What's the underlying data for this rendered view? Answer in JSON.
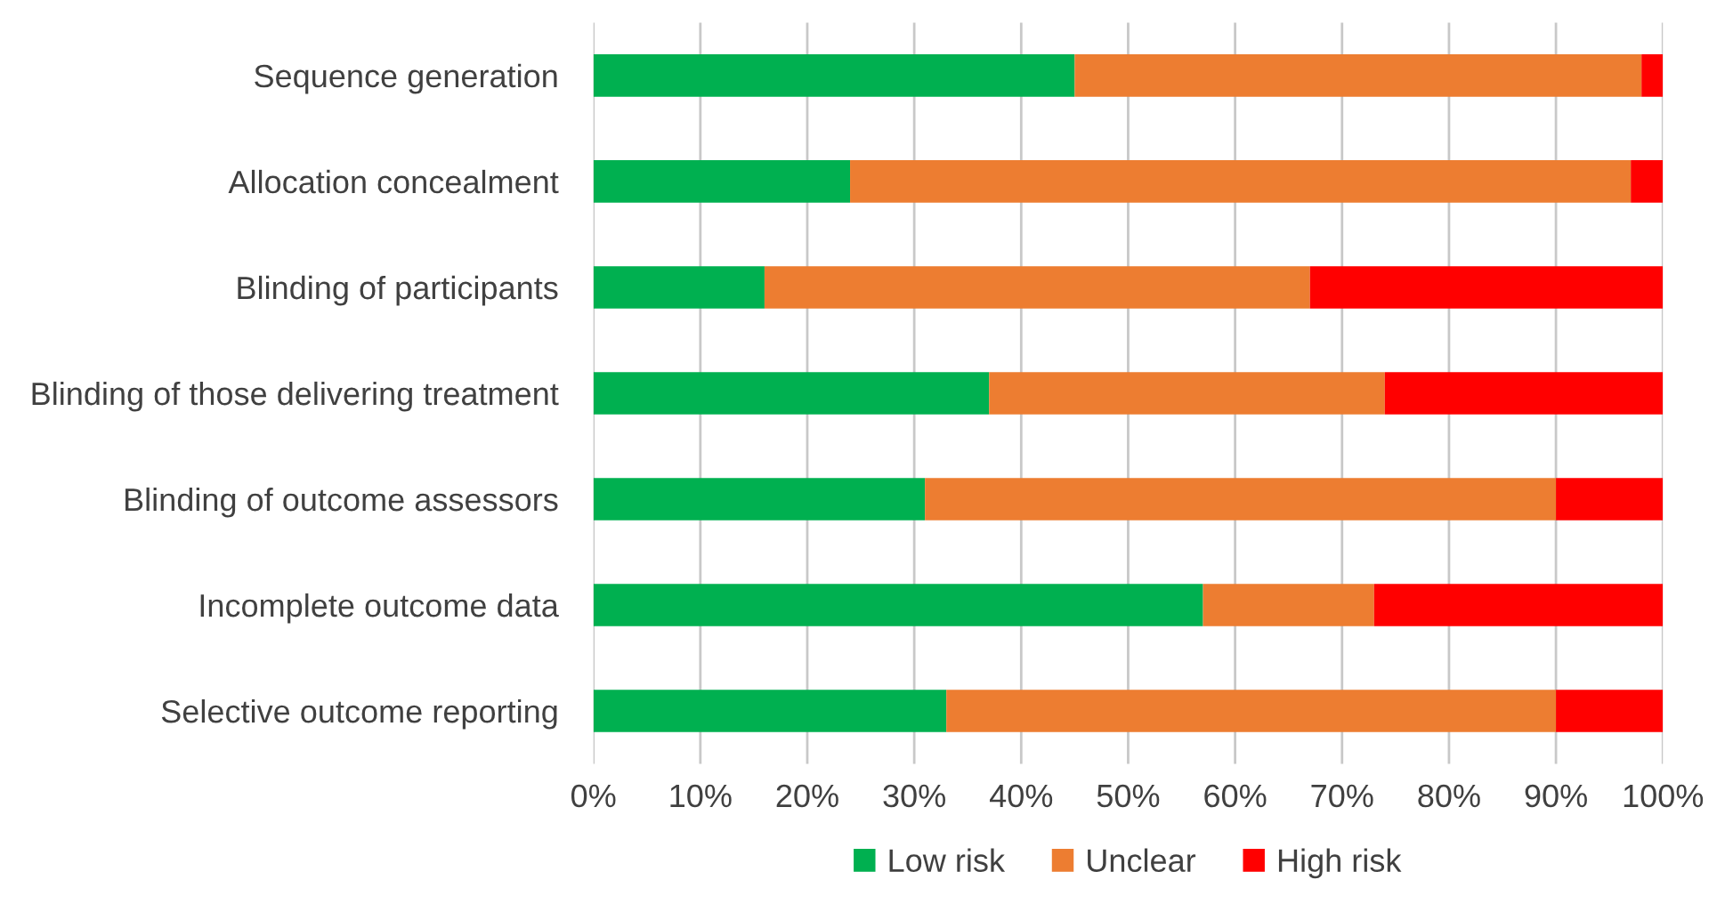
{
  "chart_data": {
    "type": "bar",
    "orientation": "horizontal",
    "stacked": true,
    "categories": [
      "Sequence generation",
      "Allocation concealment",
      "Blinding of participants",
      "Blinding of those delivering treatment",
      "Blinding of outcome assessors",
      "Incomplete outcome data",
      "Selective outcome reporting"
    ],
    "series": [
      {
        "name": "Low risk",
        "color": "#00b050",
        "values": [
          45,
          24,
          16,
          37,
          31,
          57,
          33
        ]
      },
      {
        "name": "Unclear",
        "color": "#ed7d31",
        "values": [
          53,
          73,
          51,
          37,
          59,
          16,
          57
        ]
      },
      {
        "name": "High risk",
        "color": "#ff0000",
        "values": [
          2,
          3,
          33,
          26,
          10,
          27,
          10
        ]
      }
    ],
    "xlim": [
      0,
      100
    ],
    "xticks": [
      {
        "value": 0,
        "label": "0%"
      },
      {
        "value": 10,
        "label": "10%"
      },
      {
        "value": 20,
        "label": "20%"
      },
      {
        "value": 30,
        "label": "30%"
      },
      {
        "value": 40,
        "label": "40%"
      },
      {
        "value": 50,
        "label": "50%"
      },
      {
        "value": 60,
        "label": "60%"
      },
      {
        "value": 70,
        "label": "70%"
      },
      {
        "value": 80,
        "label": "80%"
      },
      {
        "value": 90,
        "label": "90%"
      },
      {
        "value": 100,
        "label": "100%"
      }
    ],
    "grid": "x",
    "legend": "bottom"
  }
}
